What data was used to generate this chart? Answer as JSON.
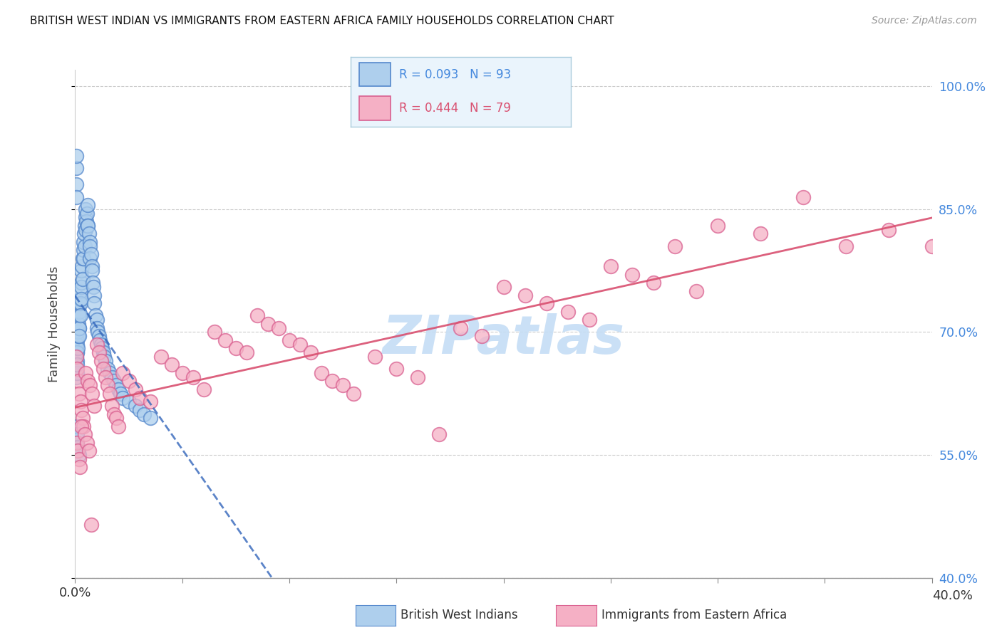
{
  "title": "BRITISH WEST INDIAN VS IMMIGRANTS FROM EASTERN AFRICA FAMILY HOUSEHOLDS CORRELATION CHART",
  "source": "Source: ZipAtlas.com",
  "ylabel": "Family Households",
  "y_ticks": [
    40.0,
    55.0,
    70.0,
    85.0,
    100.0
  ],
  "y_tick_labels": [
    "40.0%",
    "55.0%",
    "70.0%",
    "85.0%",
    "100.0%"
  ],
  "x_min": 0.0,
  "x_max": 40.0,
  "y_min": 40.0,
  "y_max": 102.0,
  "series1_label": "British West Indians",
  "series2_label": "Immigrants from Eastern Africa",
  "series1_R": 0.093,
  "series1_N": 93,
  "series2_R": 0.444,
  "series2_N": 79,
  "series1_color": "#aecfed",
  "series1_edge": "#5588cc",
  "series2_color": "#f5b0c5",
  "series2_edge": "#d96090",
  "trend1_color": "#3366bb",
  "trend2_color": "#d95070",
  "watermark": "ZIPatlas",
  "watermark_color": "#c5ddf5",
  "legend_bg": "#eaf4fc",
  "legend_border": "#aaccdd",
  "series1_x": [
    0.05,
    0.05,
    0.05,
    0.05,
    0.05,
    0.08,
    0.08,
    0.08,
    0.1,
    0.1,
    0.1,
    0.1,
    0.12,
    0.12,
    0.15,
    0.15,
    0.18,
    0.18,
    0.2,
    0.2,
    0.2,
    0.22,
    0.25,
    0.25,
    0.25,
    0.28,
    0.3,
    0.3,
    0.3,
    0.32,
    0.35,
    0.35,
    0.38,
    0.4,
    0.4,
    0.42,
    0.45,
    0.45,
    0.48,
    0.5,
    0.5,
    0.52,
    0.55,
    0.58,
    0.6,
    0.6,
    0.65,
    0.68,
    0.7,
    0.7,
    0.75,
    0.78,
    0.8,
    0.82,
    0.85,
    0.88,
    0.9,
    0.95,
    1.0,
    1.0,
    1.05,
    1.1,
    1.15,
    1.2,
    1.25,
    1.3,
    1.35,
    1.4,
    1.5,
    1.6,
    1.7,
    1.8,
    1.9,
    2.0,
    2.1,
    2.2,
    2.5,
    2.8,
    3.0,
    3.2,
    3.5,
    0.05,
    0.05,
    0.05,
    0.05,
    0.05,
    0.08,
    0.08,
    0.1,
    0.12,
    0.15,
    0.18,
    0.2
  ],
  "series1_y": [
    68.0,
    67.0,
    66.0,
    65.5,
    64.5,
    67.5,
    66.5,
    65.0,
    69.0,
    68.5,
    67.5,
    66.0,
    70.0,
    68.0,
    71.0,
    69.5,
    72.5,
    70.5,
    73.5,
    72.0,
    70.5,
    74.0,
    75.0,
    73.5,
    72.0,
    76.0,
    77.5,
    75.5,
    74.0,
    78.0,
    79.0,
    76.5,
    80.0,
    81.0,
    79.0,
    82.0,
    83.0,
    80.5,
    84.0,
    85.0,
    82.5,
    83.5,
    84.5,
    83.0,
    85.5,
    83.0,
    82.0,
    81.0,
    80.5,
    79.0,
    79.5,
    78.0,
    77.5,
    76.0,
    75.5,
    74.5,
    73.5,
    72.0,
    71.5,
    70.5,
    70.0,
    69.5,
    69.0,
    68.5,
    68.0,
    67.5,
    67.0,
    66.5,
    65.5,
    65.0,
    64.5,
    64.0,
    63.5,
    63.0,
    62.5,
    62.0,
    61.5,
    61.0,
    60.5,
    60.0,
    59.5,
    90.0,
    91.5,
    88.0,
    86.5,
    57.0,
    58.5,
    56.5,
    57.5,
    56.0,
    55.5,
    55.0,
    69.5
  ],
  "series2_x": [
    0.05,
    0.1,
    0.15,
    0.2,
    0.25,
    0.3,
    0.35,
    0.4,
    0.5,
    0.6,
    0.7,
    0.8,
    0.9,
    1.0,
    1.1,
    1.2,
    1.3,
    1.4,
    1.5,
    1.6,
    1.7,
    1.8,
    1.9,
    2.0,
    2.2,
    2.5,
    2.8,
    3.0,
    3.5,
    4.0,
    4.5,
    5.0,
    5.5,
    6.0,
    6.5,
    7.0,
    7.5,
    8.0,
    8.5,
    9.0,
    9.5,
    10.0,
    10.5,
    11.0,
    11.5,
    12.0,
    12.5,
    13.0,
    14.0,
    15.0,
    16.0,
    17.0,
    18.0,
    19.0,
    20.0,
    21.0,
    22.0,
    23.0,
    24.0,
    25.0,
    26.0,
    27.0,
    28.0,
    29.0,
    30.0,
    32.0,
    34.0,
    36.0,
    38.0,
    40.0,
    0.08,
    0.12,
    0.18,
    0.22,
    0.28,
    0.45,
    0.55,
    0.65,
    0.75
  ],
  "series2_y": [
    67.0,
    65.5,
    64.0,
    62.5,
    61.5,
    60.5,
    59.5,
    58.5,
    65.0,
    64.0,
    63.5,
    62.5,
    61.0,
    68.5,
    67.5,
    66.5,
    65.5,
    64.5,
    63.5,
    62.5,
    61.0,
    60.0,
    59.5,
    58.5,
    65.0,
    64.0,
    63.0,
    62.0,
    61.5,
    67.0,
    66.0,
    65.0,
    64.5,
    63.0,
    70.0,
    69.0,
    68.0,
    67.5,
    72.0,
    71.0,
    70.5,
    69.0,
    68.5,
    67.5,
    65.0,
    64.0,
    63.5,
    62.5,
    67.0,
    65.5,
    64.5,
    57.5,
    70.5,
    69.5,
    75.5,
    74.5,
    73.5,
    72.5,
    71.5,
    78.0,
    77.0,
    76.0,
    80.5,
    75.0,
    83.0,
    82.0,
    86.5,
    80.5,
    82.5,
    80.5,
    56.5,
    55.5,
    54.5,
    53.5,
    58.5,
    57.5,
    56.5,
    55.5,
    46.5
  ]
}
